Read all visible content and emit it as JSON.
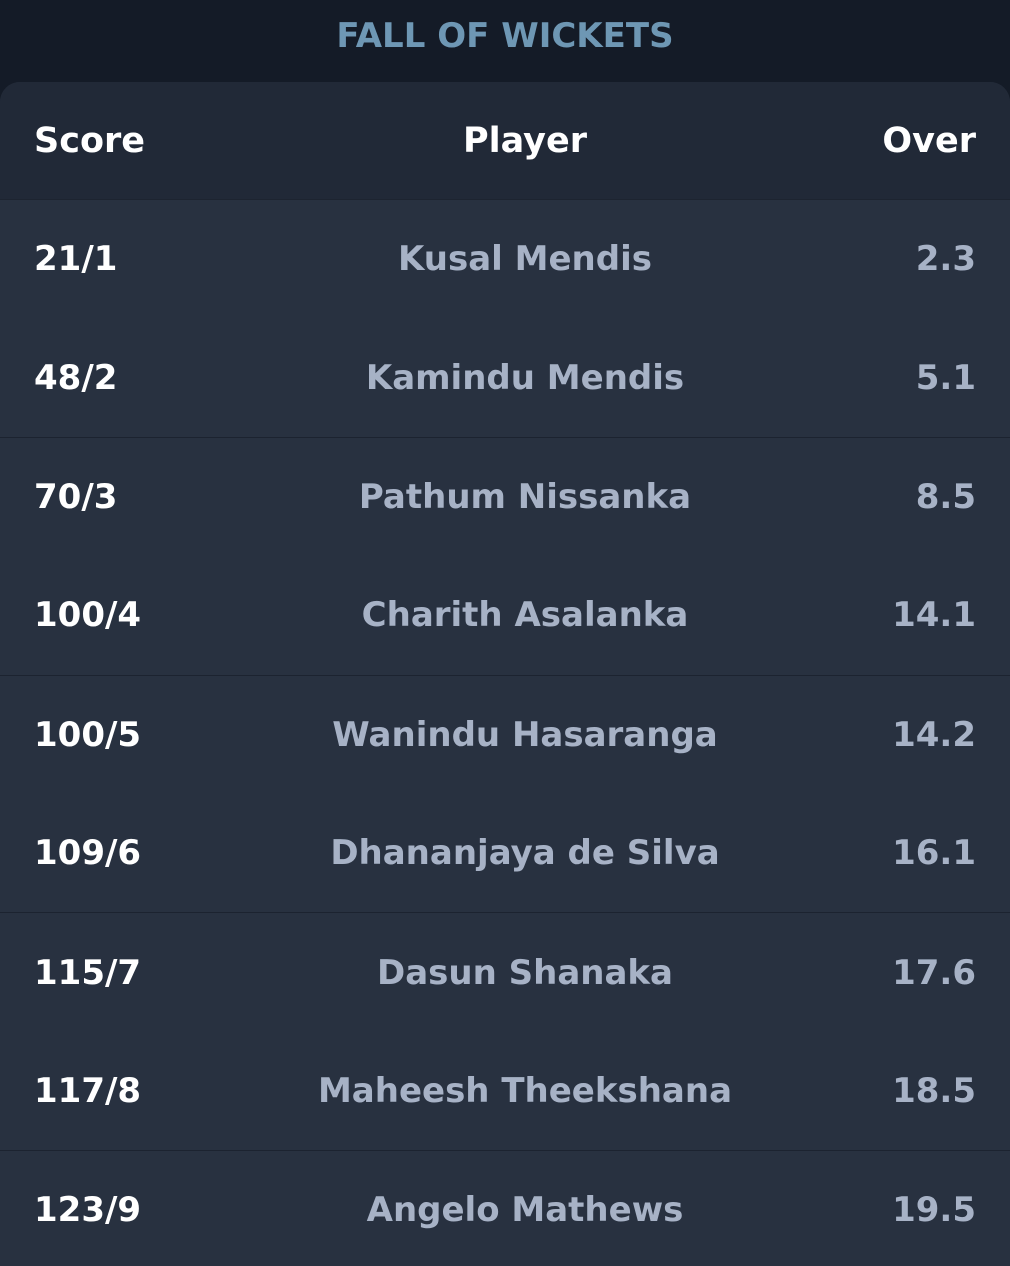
{
  "title": "FALL OF WICKETS",
  "table": {
    "headers": {
      "score": "Score",
      "player": "Player",
      "over": "Over"
    },
    "rows": [
      {
        "score": "21/1",
        "player": "Kusal Mendis",
        "over": "2.3"
      },
      {
        "score": "48/2",
        "player": "Kamindu Mendis",
        "over": "5.1"
      },
      {
        "score": "70/3",
        "player": "Pathum Nissanka",
        "over": "8.5"
      },
      {
        "score": "100/4",
        "player": "Charith Asalanka",
        "over": "14.1"
      },
      {
        "score": "100/5",
        "player": "Wanindu Hasaranga",
        "over": "14.2"
      },
      {
        "score": "109/6",
        "player": "Dhananjaya de Silva",
        "over": "16.1"
      },
      {
        "score": "115/7",
        "player": "Dasun Shanaka",
        "over": "17.6"
      },
      {
        "score": "117/8",
        "player": "Maheesh Theekshana",
        "over": "18.5"
      },
      {
        "score": "123/9",
        "player": "Angelo Mathews",
        "over": "19.5"
      }
    ]
  },
  "colors": {
    "background": "#141b27",
    "table_background": "#283140",
    "header_background": "#212937",
    "title": "#6e97b4",
    "score_text": "#ffffff",
    "muted_text": "#a7b2c6"
  }
}
